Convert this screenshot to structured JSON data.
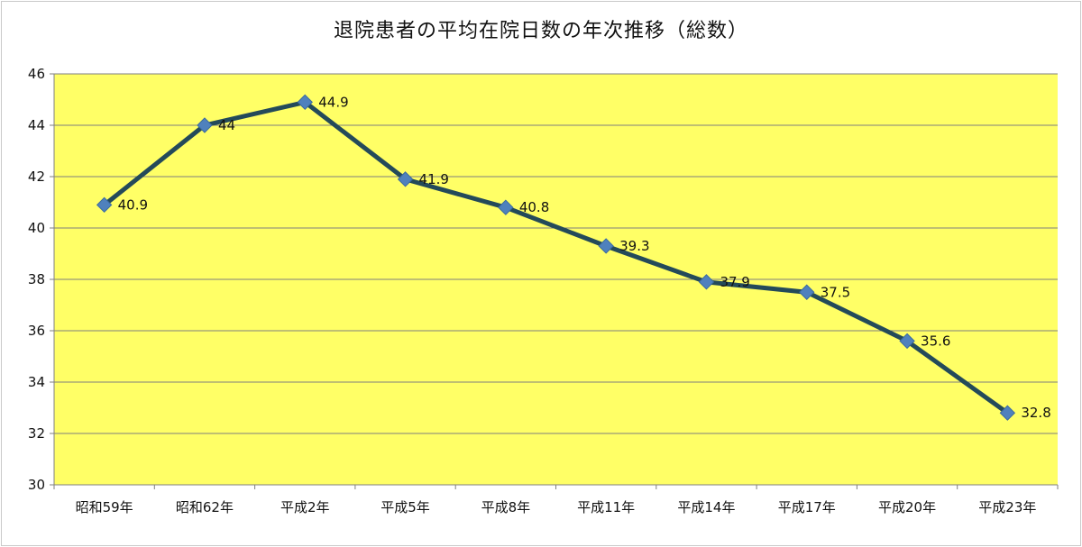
{
  "chart_data": {
    "type": "line",
    "title": "退院患者の平均在院日数の年次推移（総数）",
    "categories": [
      "昭和59年",
      "昭和62年",
      "平成2年",
      "平成5年",
      "平成8年",
      "平成11年",
      "平成14年",
      "平成17年",
      "平成20年",
      "平成23年"
    ],
    "series": [
      {
        "values": [
          40.9,
          44,
          44.9,
          41.9,
          40.8,
          39.3,
          37.9,
          37.5,
          35.6,
          32.8
        ],
        "labels": [
          "40.9",
          "44",
          "44.9",
          "41.9",
          "40.8",
          "39.3",
          "37.9",
          "37.5",
          "35.6",
          "32.8"
        ]
      }
    ],
    "y_ticks": [
      "30",
      "32",
      "34",
      "36",
      "38",
      "40",
      "42",
      "44",
      "46"
    ],
    "ylim": [
      30,
      46
    ],
    "grid": true,
    "marker": "diamond",
    "colors": {
      "plot_background": "#ffff66",
      "line": "#244a5a",
      "marker": "#4f81bd",
      "grid": "#7f7f7f"
    }
  }
}
